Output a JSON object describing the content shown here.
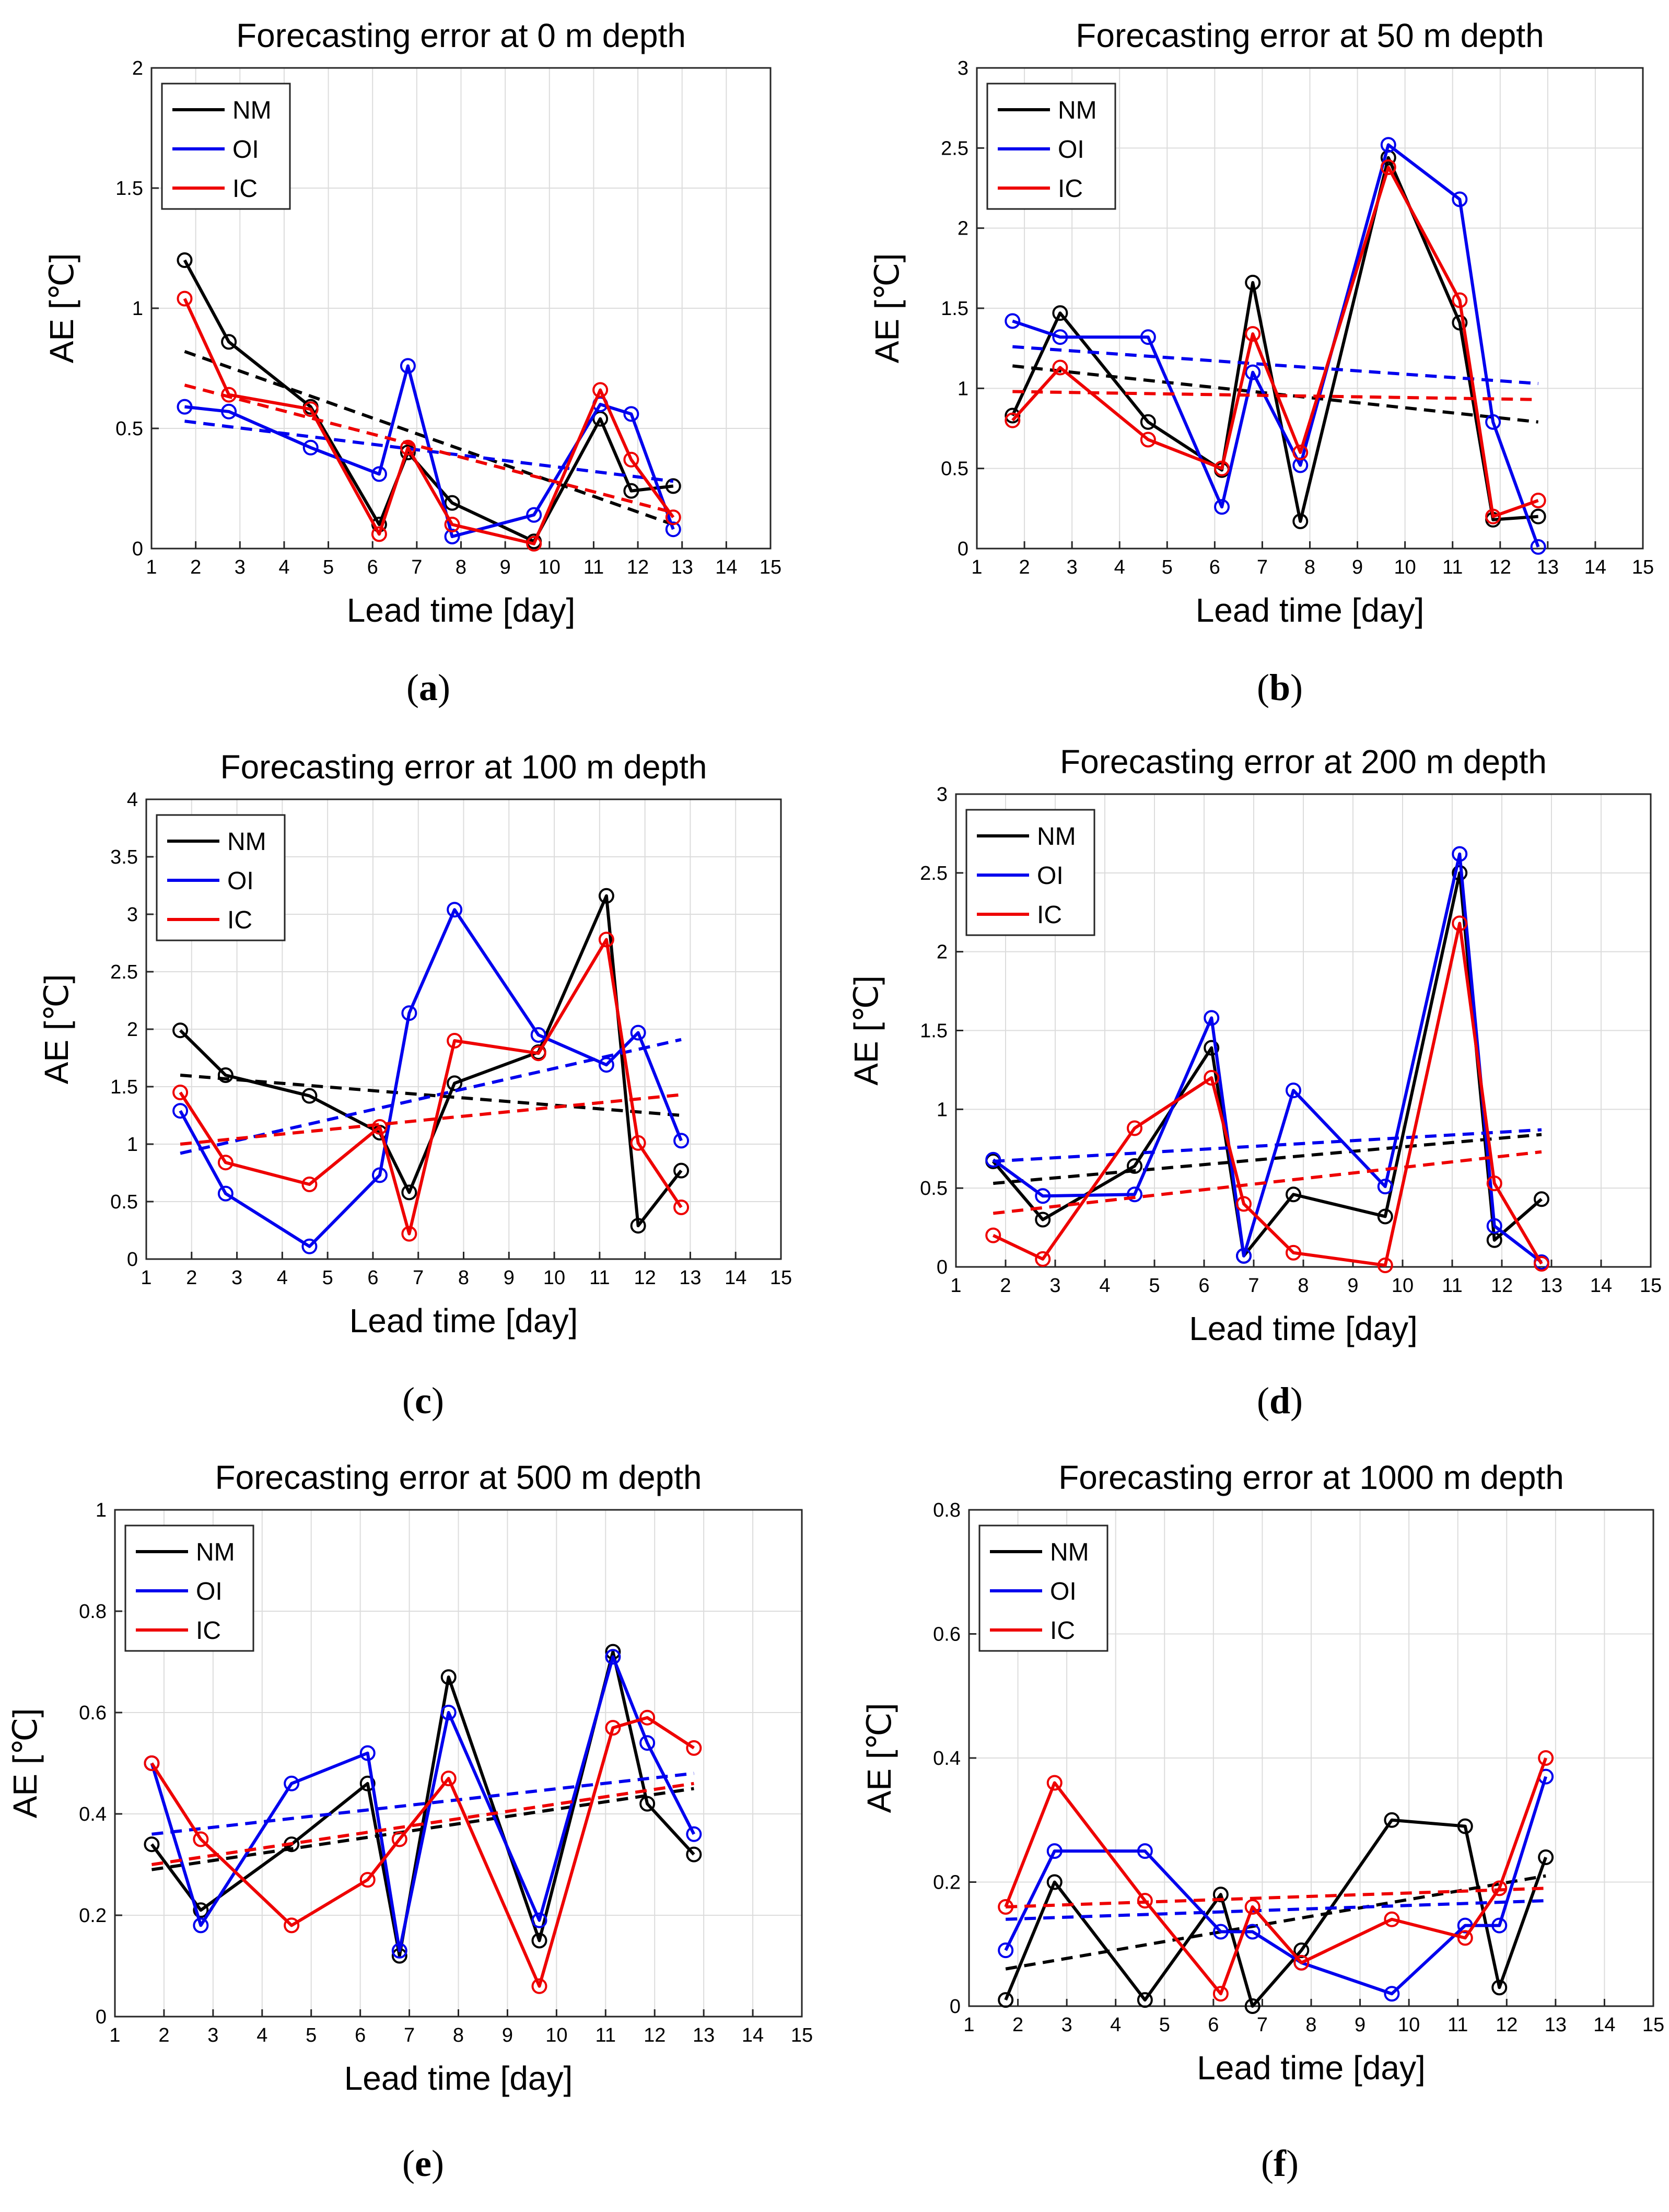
{
  "figure": {
    "x_label": "Lead time [day]",
    "y_label": "AE [℃]",
    "legend": [
      "NM",
      "OI",
      "IC"
    ],
    "colors": {
      "NM": "#000000",
      "OI": "#0000ee",
      "IC": "#ee0000",
      "grid": "#dcdcdc",
      "axis": "#000000"
    }
  },
  "captions": [
    {
      "open": "(",
      "letter": "a",
      "close": ")"
    },
    {
      "open": "(",
      "letter": "b",
      "close": ")"
    },
    {
      "open": "(",
      "letter": "c",
      "close": ")"
    },
    {
      "open": "(",
      "letter": "d",
      "close": ")"
    },
    {
      "open": "(",
      "letter": "e",
      "close": ")"
    },
    {
      "open": "(",
      "letter": "f",
      "close": ")"
    }
  ],
  "chart_data": [
    {
      "type": "line",
      "title": "Forecasting error at 0 m depth",
      "xlabel": "Lead time [day]",
      "ylabel": "AE [℃]",
      "xlim": [
        1,
        15
      ],
      "ylim": [
        0,
        2
      ],
      "xticks": [
        1,
        2,
        3,
        4,
        5,
        6,
        7,
        8,
        9,
        10,
        11,
        12,
        13,
        14,
        15
      ],
      "yticks": [
        0,
        0.5,
        1,
        1.5,
        2
      ],
      "ytick_labels": [
        "0",
        "0.5",
        "1",
        "1.5",
        "2"
      ],
      "x": [
        1.75,
        2.75,
        4.6,
        6.15,
        6.8,
        7.8,
        9.65,
        11.15,
        11.85,
        12.8
      ],
      "series": [
        {
          "name": "NM",
          "values": [
            1.2,
            0.86,
            0.59,
            0.1,
            0.4,
            0.19,
            0.03,
            0.54,
            0.24,
            0.26
          ],
          "trend": [
            0.82,
            0.1
          ]
        },
        {
          "name": "OI",
          "values": [
            0.59,
            0.57,
            0.42,
            0.31,
            0.76,
            0.05,
            0.14,
            0.6,
            0.56,
            0.08
          ],
          "trend": [
            0.53,
            0.28
          ]
        },
        {
          "name": "IC",
          "values": [
            1.04,
            0.64,
            0.58,
            0.06,
            0.42,
            0.1,
            0.02,
            0.66,
            0.37,
            0.13
          ],
          "trend": [
            0.68,
            0.15
          ]
        }
      ],
      "legend_position": "top-left"
    },
    {
      "type": "line",
      "title": "Forecasting error at 50 m depth",
      "xlabel": "Lead time [day]",
      "ylabel": "AE [℃]",
      "xlim": [
        1,
        15
      ],
      "ylim": [
        0,
        3
      ],
      "xticks": [
        1,
        2,
        3,
        4,
        5,
        6,
        7,
        8,
        9,
        10,
        11,
        12,
        13,
        14,
        15
      ],
      "yticks": [
        0,
        0.5,
        1,
        1.5,
        2,
        2.5,
        3
      ],
      "ytick_labels": [
        "0",
        "0.5",
        "1",
        "1.5",
        "2",
        "2.5",
        "3"
      ],
      "x": [
        1.75,
        2.75,
        4.6,
        6.15,
        6.8,
        7.8,
        9.65,
        11.15,
        11.85,
        12.8
      ],
      "series": [
        {
          "name": "NM",
          "values": [
            0.83,
            1.47,
            0.79,
            0.49,
            1.66,
            0.17,
            2.44,
            1.41,
            0.18,
            0.2
          ],
          "trend": [
            1.14,
            0.79
          ]
        },
        {
          "name": "OI",
          "values": [
            1.42,
            1.32,
            1.32,
            0.26,
            1.1,
            0.52,
            2.52,
            2.18,
            0.79,
            0.01
          ],
          "trend": [
            1.26,
            1.03
          ]
        },
        {
          "name": "IC",
          "values": [
            0.8,
            1.13,
            0.68,
            0.5,
            1.34,
            0.6,
            2.38,
            1.55,
            0.2,
            0.3
          ],
          "trend": [
            0.98,
            0.93
          ]
        }
      ],
      "legend_position": "top-left"
    },
    {
      "type": "line",
      "title": "Forecasting error at 100 m depth",
      "xlabel": "Lead time [day]",
      "ylabel": "AE [℃]",
      "xlim": [
        1,
        15
      ],
      "ylim": [
        0,
        4
      ],
      "xticks": [
        1,
        2,
        3,
        4,
        5,
        6,
        7,
        8,
        9,
        10,
        11,
        12,
        13,
        14,
        15
      ],
      "yticks": [
        0,
        0.5,
        1,
        1.5,
        2,
        2.5,
        3,
        3.5,
        4
      ],
      "ytick_labels": [
        "0",
        "0.5",
        "1",
        "1.5",
        "2",
        "2.5",
        "3",
        "3.5",
        "4"
      ],
      "x": [
        1.75,
        2.75,
        4.6,
        6.15,
        6.8,
        7.8,
        9.65,
        11.15,
        11.85,
        12.8
      ],
      "series": [
        {
          "name": "NM",
          "values": [
            1.99,
            1.6,
            1.42,
            1.1,
            0.58,
            1.53,
            1.8,
            3.16,
            0.29,
            0.77
          ],
          "trend": [
            1.6,
            1.25
          ]
        },
        {
          "name": "OI",
          "values": [
            1.29,
            0.57,
            0.11,
            0.73,
            2.14,
            3.04,
            1.95,
            1.69,
            1.97,
            1.03
          ],
          "trend": [
            0.92,
            1.91
          ]
        },
        {
          "name": "IC",
          "values": [
            1.45,
            0.84,
            0.65,
            1.15,
            0.22,
            1.9,
            1.79,
            2.78,
            1.01,
            0.45
          ],
          "trend": [
            1.0,
            1.43
          ]
        }
      ],
      "legend_position": "top-left"
    },
    {
      "type": "line",
      "title": "Forecasting error at 200 m depth",
      "xlabel": "Lead time [day]",
      "ylabel": "AE [℃]",
      "xlim": [
        1,
        15
      ],
      "ylim": [
        0,
        3
      ],
      "xticks": [
        1,
        2,
        3,
        4,
        5,
        6,
        7,
        8,
        9,
        10,
        11,
        12,
        13,
        14,
        15
      ],
      "yticks": [
        0,
        0.5,
        1,
        1.5,
        2,
        2.5,
        3
      ],
      "ytick_labels": [
        "0",
        "0.5",
        "1",
        "1.5",
        "2",
        "2.5",
        "3"
      ],
      "x": [
        1.75,
        2.75,
        4.6,
        6.15,
        6.8,
        7.8,
        9.65,
        11.15,
        11.85,
        12.8
      ],
      "series": [
        {
          "name": "NM",
          "values": [
            0.67,
            0.3,
            0.64,
            1.39,
            0.07,
            0.46,
            0.32,
            2.5,
            0.17,
            0.43
          ],
          "trend": [
            0.53,
            0.84
          ]
        },
        {
          "name": "OI",
          "values": [
            0.68,
            0.45,
            0.46,
            1.58,
            0.07,
            1.12,
            0.51,
            2.62,
            0.26,
            0.03
          ],
          "trend": [
            0.67,
            0.87
          ]
        },
        {
          "name": "IC",
          "values": [
            0.2,
            0.05,
            0.88,
            1.2,
            0.4,
            0.09,
            0.01,
            2.18,
            0.53,
            0.02
          ],
          "trend": [
            0.34,
            0.73
          ]
        }
      ],
      "legend_position": "top-left"
    },
    {
      "type": "line",
      "title": "Forecasting error at 500 m depth",
      "xlabel": "Lead time [day]",
      "ylabel": "AE [℃]",
      "xlim": [
        1,
        15
      ],
      "ylim": [
        0,
        1
      ],
      "xticks": [
        1,
        2,
        3,
        4,
        5,
        6,
        7,
        8,
        9,
        10,
        11,
        12,
        13,
        14,
        15
      ],
      "yticks": [
        0,
        0.2,
        0.4,
        0.6,
        0.8,
        1
      ],
      "ytick_labels": [
        "0",
        "0.2",
        "0.4",
        "0.6",
        "0.8",
        "1"
      ],
      "x": [
        1.75,
        2.75,
        4.6,
        6.15,
        6.8,
        7.8,
        9.65,
        11.15,
        11.85,
        12.8
      ],
      "series": [
        {
          "name": "NM",
          "values": [
            0.34,
            0.21,
            0.34,
            0.46,
            0.12,
            0.67,
            0.15,
            0.72,
            0.42,
            0.32
          ],
          "trend": [
            0.29,
            0.45
          ]
        },
        {
          "name": "OI",
          "values": [
            0.5,
            0.18,
            0.46,
            0.52,
            0.13,
            0.6,
            0.19,
            0.71,
            0.54,
            0.36
          ],
          "trend": [
            0.36,
            0.48
          ]
        },
        {
          "name": "IC",
          "values": [
            0.5,
            0.35,
            0.18,
            0.27,
            0.35,
            0.47,
            0.06,
            0.57,
            0.59,
            0.53
          ],
          "trend": [
            0.3,
            0.46
          ]
        }
      ],
      "legend_position": "top-left"
    },
    {
      "type": "line",
      "title": "Forecasting error at 1000 m depth",
      "xlabel": "Lead time [day]",
      "ylabel": "AE [℃]",
      "xlim": [
        1,
        15
      ],
      "ylim": [
        0,
        0.8
      ],
      "xticks": [
        1,
        2,
        3,
        4,
        5,
        6,
        7,
        8,
        9,
        10,
        11,
        12,
        13,
        14,
        15
      ],
      "yticks": [
        0,
        0.2,
        0.4,
        0.6,
        0.8
      ],
      "ytick_labels": [
        "0",
        "0.2",
        "0.4",
        "0.6",
        "0.8"
      ],
      "x": [
        1.75,
        2.75,
        4.6,
        6.15,
        6.8,
        7.8,
        9.65,
        11.15,
        11.85,
        12.8
      ],
      "series": [
        {
          "name": "NM",
          "values": [
            0.01,
            0.2,
            0.01,
            0.18,
            0.0,
            0.09,
            0.3,
            0.29,
            0.03,
            0.24
          ],
          "trend": [
            0.06,
            0.21
          ]
        },
        {
          "name": "OI",
          "values": [
            0.09,
            0.25,
            0.25,
            0.12,
            0.12,
            0.07,
            0.02,
            0.13,
            0.13,
            0.37
          ],
          "trend": [
            0.14,
            0.17
          ]
        },
        {
          "name": "IC",
          "values": [
            0.16,
            0.36,
            0.17,
            0.02,
            0.16,
            0.07,
            0.14,
            0.11,
            0.19,
            0.4
          ],
          "trend": [
            0.16,
            0.19
          ]
        }
      ],
      "legend_position": "top-left"
    }
  ]
}
